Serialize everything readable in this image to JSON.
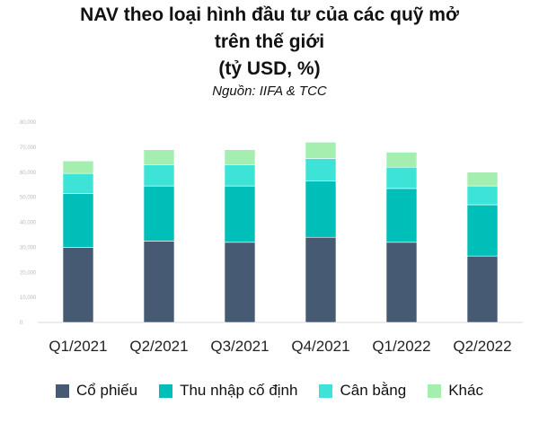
{
  "title_line1": "NAV theo loại hình đầu tư của các quỹ mở",
  "title_line2": "trên thế giới",
  "title_line3": "(tỷ USD, %)",
  "source": "Nguồn: IIFA & TCC",
  "colors": {
    "Cổ phiếu": "#475a73",
    "Thu nhập cố định": "#00bfb8",
    "Cân bằng": "#3de3d6",
    "Khác": "#a4eeb0"
  },
  "chart_data": {
    "type": "bar",
    "stacked": true,
    "categories": [
      "Q1/2021",
      "Q2/2021",
      "Q3/2021",
      "Q4/2021",
      "Q1/2022",
      "Q2/2022"
    ],
    "series": [
      {
        "name": "Cổ phiếu",
        "values": [
          30000,
          32500,
          32000,
          34000,
          32000,
          26500
        ]
      },
      {
        "name": "Thu nhập cố định",
        "values": [
          21500,
          22000,
          22500,
          22500,
          21500,
          20500
        ]
      },
      {
        "name": "Cân bằng",
        "values": [
          8000,
          8500,
          8500,
          9000,
          8500,
          7500
        ]
      },
      {
        "name": "Khác",
        "values": [
          5000,
          6000,
          6000,
          6500,
          6000,
          5500
        ]
      }
    ],
    "ylim": [
      0,
      80000
    ],
    "yticks": [
      "0",
      "10,000",
      "20,000",
      "30,000",
      "40,000",
      "50,000",
      "60,000",
      "70,000",
      "80,000"
    ],
    "legend_position": "bottom",
    "grid": false
  }
}
